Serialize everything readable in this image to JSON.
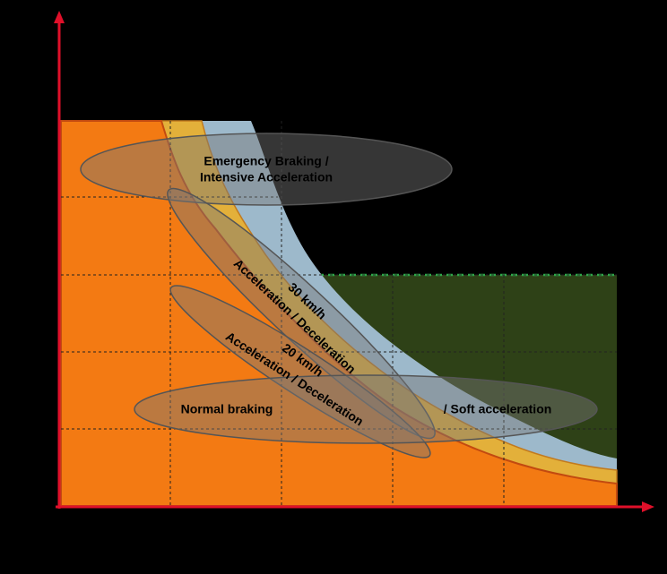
{
  "ellipses": [
    {
      "label": [
        "Emergency Braking /",
        "Intensive Acceleration"
      ]
    },
    {
      "speed": "30 km/h",
      "label": "Acceleration / Deceleration"
    },
    {
      "speed": "20 km/h",
      "label": "Acceleration / Deceleration"
    },
    {
      "left_label": "Normal braking",
      "right_label": "/ Soft acceleration"
    }
  ]
}
